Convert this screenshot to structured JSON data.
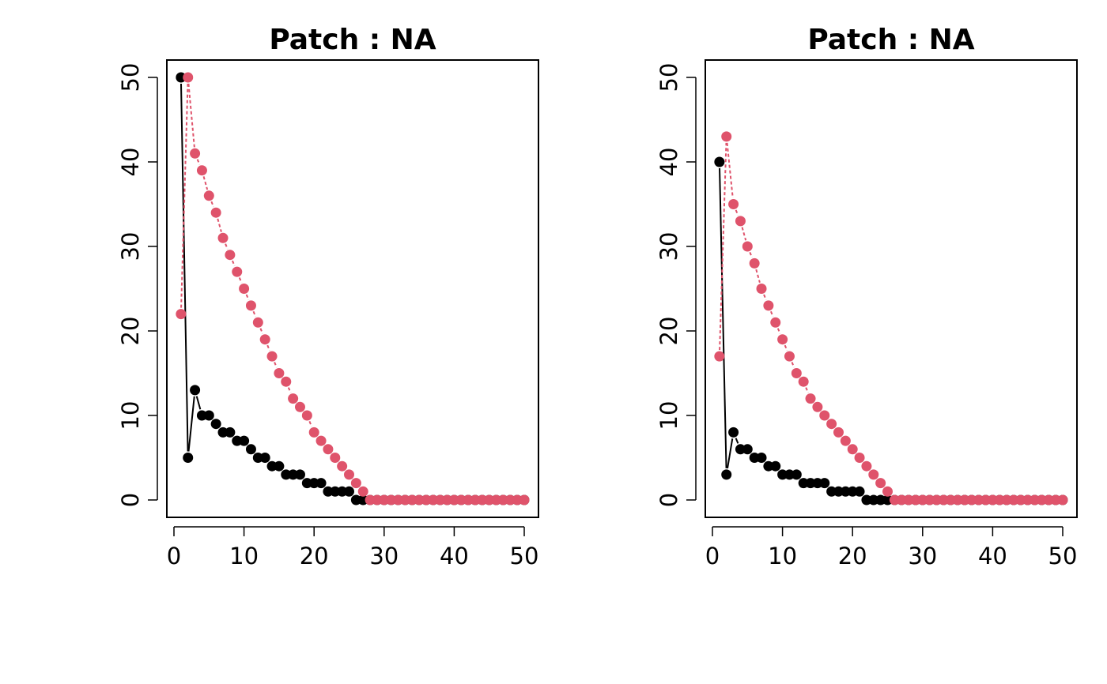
{
  "colors": {
    "series_1": "#000000",
    "series_2": "#df536b"
  },
  "chart_data": [
    {
      "type": "scatter",
      "title": "Patch : NA",
      "xlabel": "",
      "ylabel": "",
      "xlim": [
        0,
        50
      ],
      "ylim": [
        0,
        50
      ],
      "x_ticks": [
        0,
        10,
        20,
        30,
        40,
        50
      ],
      "y_ticks": [
        0,
        10,
        20,
        30,
        40,
        50
      ],
      "x_tick_labels": [
        "0",
        "10",
        "20",
        "30",
        "40",
        "50"
      ],
      "y_tick_labels": [
        "0",
        "10",
        "20",
        "30",
        "40",
        "50"
      ],
      "grid": false,
      "x": [
        1,
        2,
        3,
        4,
        5,
        6,
        7,
        8,
        9,
        10,
        11,
        12,
        13,
        14,
        15,
        16,
        17,
        18,
        19,
        20,
        21,
        22,
        23,
        24,
        25,
        26,
        27,
        28,
        29,
        30,
        31,
        32,
        33,
        34,
        35,
        36,
        37,
        38,
        39,
        40,
        41,
        42,
        43,
        44,
        45,
        46,
        47,
        48,
        49,
        50
      ],
      "series": [
        {
          "color": "#000000",
          "line": "solid",
          "values": [
            50,
            5,
            13,
            10,
            10,
            9,
            8,
            8,
            7,
            7,
            6,
            5,
            5,
            4,
            4,
            3,
            3,
            3,
            2,
            2,
            2,
            1,
            1,
            1,
            1,
            0,
            0,
            0,
            0,
            0,
            0,
            0,
            0,
            0,
            0,
            0,
            0,
            0,
            0,
            0,
            0,
            0,
            0,
            0,
            0,
            0,
            0,
            0,
            0,
            0
          ]
        },
        {
          "color": "#df536b",
          "line": "dashed",
          "values": [
            22,
            50,
            41,
            39,
            36,
            34,
            31,
            29,
            27,
            25,
            23,
            21,
            19,
            17,
            15,
            14,
            12,
            11,
            10,
            8,
            7,
            6,
            5,
            4,
            3,
            2,
            1,
            0,
            0,
            0,
            0,
            0,
            0,
            0,
            0,
            0,
            0,
            0,
            0,
            0,
            0,
            0,
            0,
            0,
            0,
            0,
            0,
            0,
            0,
            0
          ]
        }
      ]
    },
    {
      "type": "scatter",
      "title": "Patch : NA",
      "xlabel": "",
      "ylabel": "",
      "xlim": [
        0,
        50
      ],
      "ylim": [
        0,
        50
      ],
      "x_ticks": [
        0,
        10,
        20,
        30,
        40,
        50
      ],
      "y_ticks": [
        0,
        10,
        20,
        30,
        40,
        50
      ],
      "x_tick_labels": [
        "0",
        "10",
        "20",
        "30",
        "40",
        "50"
      ],
      "y_tick_labels": [
        "0",
        "10",
        "20",
        "30",
        "40",
        "50"
      ],
      "grid": false,
      "x": [
        1,
        2,
        3,
        4,
        5,
        6,
        7,
        8,
        9,
        10,
        11,
        12,
        13,
        14,
        15,
        16,
        17,
        18,
        19,
        20,
        21,
        22,
        23,
        24,
        25,
        26,
        27,
        28,
        29,
        30,
        31,
        32,
        33,
        34,
        35,
        36,
        37,
        38,
        39,
        40,
        41,
        42,
        43,
        44,
        45,
        46,
        47,
        48,
        49,
        50
      ],
      "series": [
        {
          "color": "#000000",
          "line": "solid",
          "values": [
            40,
            3,
            8,
            6,
            6,
            5,
            5,
            4,
            4,
            3,
            3,
            3,
            2,
            2,
            2,
            2,
            1,
            1,
            1,
            1,
            1,
            0,
            0,
            0,
            0,
            0,
            0,
            0,
            0,
            0,
            0,
            0,
            0,
            0,
            0,
            0,
            0,
            0,
            0,
            0,
            0,
            0,
            0,
            0,
            0,
            0,
            0,
            0,
            0,
            0
          ]
        },
        {
          "color": "#df536b",
          "line": "dashed",
          "values": [
            17,
            43,
            35,
            33,
            30,
            28,
            25,
            23,
            21,
            19,
            17,
            15,
            14,
            12,
            11,
            10,
            9,
            8,
            7,
            6,
            5,
            4,
            3,
            2,
            1,
            0,
            0,
            0,
            0,
            0,
            0,
            0,
            0,
            0,
            0,
            0,
            0,
            0,
            0,
            0,
            0,
            0,
            0,
            0,
            0,
            0,
            0,
            0,
            0,
            0
          ]
        }
      ]
    }
  ]
}
